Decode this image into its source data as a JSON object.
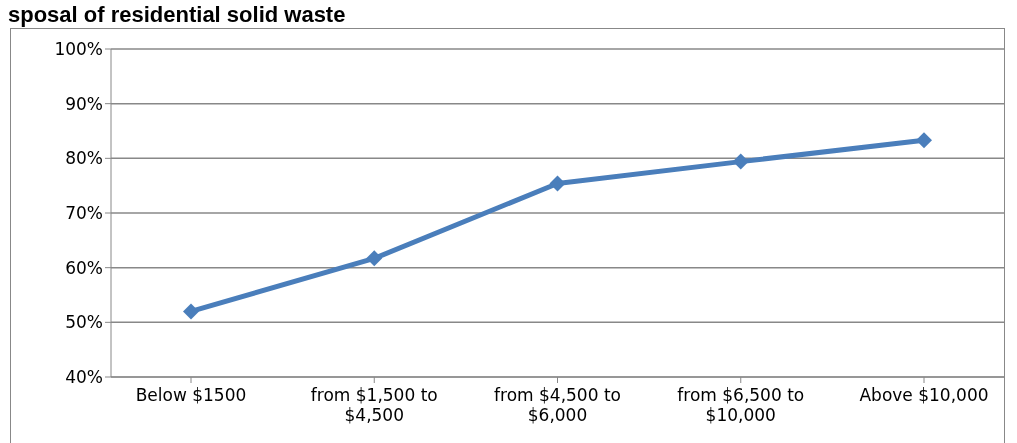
{
  "chart_data": {
    "type": "line",
    "title": "sposal of residential solid waste",
    "categories": [
      "Below $1500",
      "from $1,500 to $4,500",
      "from $4,500 to $6,000",
      "from $6,500 to $10,000",
      "Above $10,000"
    ],
    "series": [
      {
        "color": "#4a7ebb",
        "values": [
          52,
          61.7,
          75.4,
          79.4,
          83.3
        ]
      }
    ],
    "ylim": [
      40,
      100
    ],
    "yticks": [
      {
        "value": 40,
        "label": "40%"
      },
      {
        "value": 50,
        "label": "50%"
      },
      {
        "value": 60,
        "label": "60%"
      },
      {
        "value": 70,
        "label": "70%"
      },
      {
        "value": 80,
        "label": "80%"
      },
      {
        "value": 90,
        "label": "90%"
      },
      {
        "value": 100,
        "label": "100%"
      }
    ],
    "grid": "y",
    "marker": "diamond",
    "legend": false
  }
}
